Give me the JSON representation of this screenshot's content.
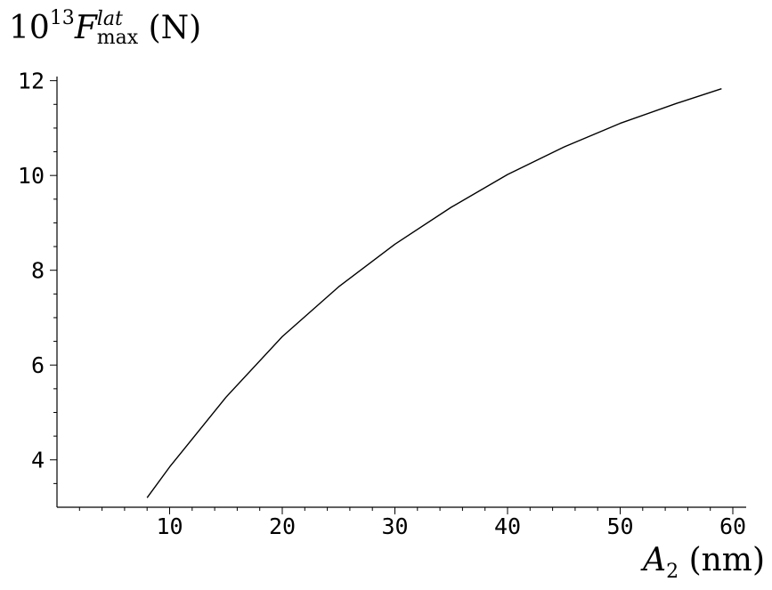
{
  "chart_data": {
    "type": "line",
    "ylabel": {
      "prefix": "10",
      "exponent": "13",
      "symbol": "F",
      "superscript": "lat",
      "subscript": "max",
      "unit": "(N)"
    },
    "xlabel": {
      "symbol": "A",
      "subscript": "2",
      "unit": "(nm)"
    },
    "xlim": [
      0,
      60
    ],
    "ylim": [
      3,
      12.2
    ],
    "x_ticks": [
      10,
      20,
      30,
      40,
      50,
      60
    ],
    "x_tick_labels": [
      "10",
      "20",
      "30",
      "40",
      "50",
      "60"
    ],
    "y_ticks": [
      4,
      6,
      8,
      10,
      12
    ],
    "y_tick_labels": [
      "4",
      "6",
      "8",
      "10",
      "12"
    ],
    "grid": false,
    "series": [
      {
        "color": "#000000",
        "x": [
          8,
          10,
          15,
          20,
          25,
          30,
          35,
          40,
          45,
          50,
          55,
          59
        ],
        "y": [
          3.2,
          3.85,
          5.32,
          6.6,
          7.65,
          8.55,
          9.33,
          10.02,
          10.6,
          11.1,
          11.52,
          11.83
        ]
      }
    ]
  }
}
